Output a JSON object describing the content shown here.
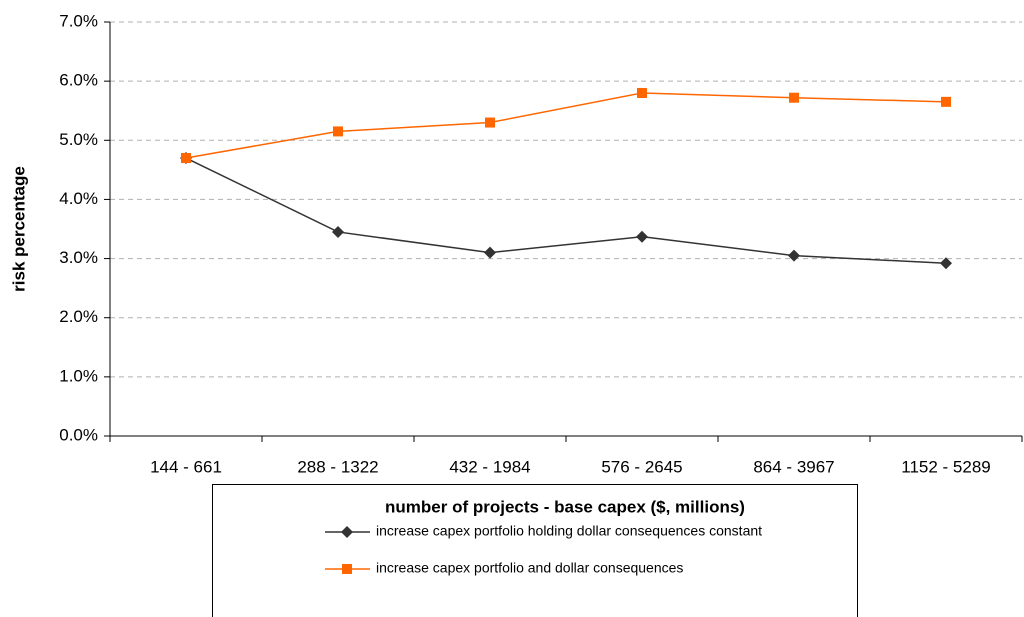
{
  "chart_data": {
    "type": "line",
    "xlabel": "number of projects - base capex ($, millions)",
    "ylabel": "risk percentage",
    "categories": [
      "144 - 661",
      "288 - 1322",
      "432 - 1984",
      "576 - 2645",
      "864 - 3967",
      "1152 - 5289"
    ],
    "series": [
      {
        "name": "increase capex portfolio holding dollar consequences constant",
        "color": "#333333",
        "marker": "diamond",
        "values": [
          4.7,
          3.45,
          3.1,
          3.37,
          3.05,
          2.92
        ]
      },
      {
        "name": "increase capex portfolio and dollar consequences",
        "color": "#ff6600",
        "marker": "square",
        "values": [
          4.7,
          5.15,
          5.3,
          5.8,
          5.72,
          5.65
        ]
      }
    ],
    "ylim": [
      0,
      7
    ],
    "yticks": [
      {
        "value": 0,
        "label": "0.0%"
      },
      {
        "value": 1,
        "label": "1.0%"
      },
      {
        "value": 2,
        "label": "2.0%"
      },
      {
        "value": 3,
        "label": "3.0%"
      },
      {
        "value": 4,
        "label": "4.0%"
      },
      {
        "value": 5,
        "label": "5.0%"
      },
      {
        "value": 6,
        "label": "6.0%"
      },
      {
        "value": 7,
        "label": "7.0%"
      }
    ],
    "grid": true,
    "legend": "bottom"
  }
}
